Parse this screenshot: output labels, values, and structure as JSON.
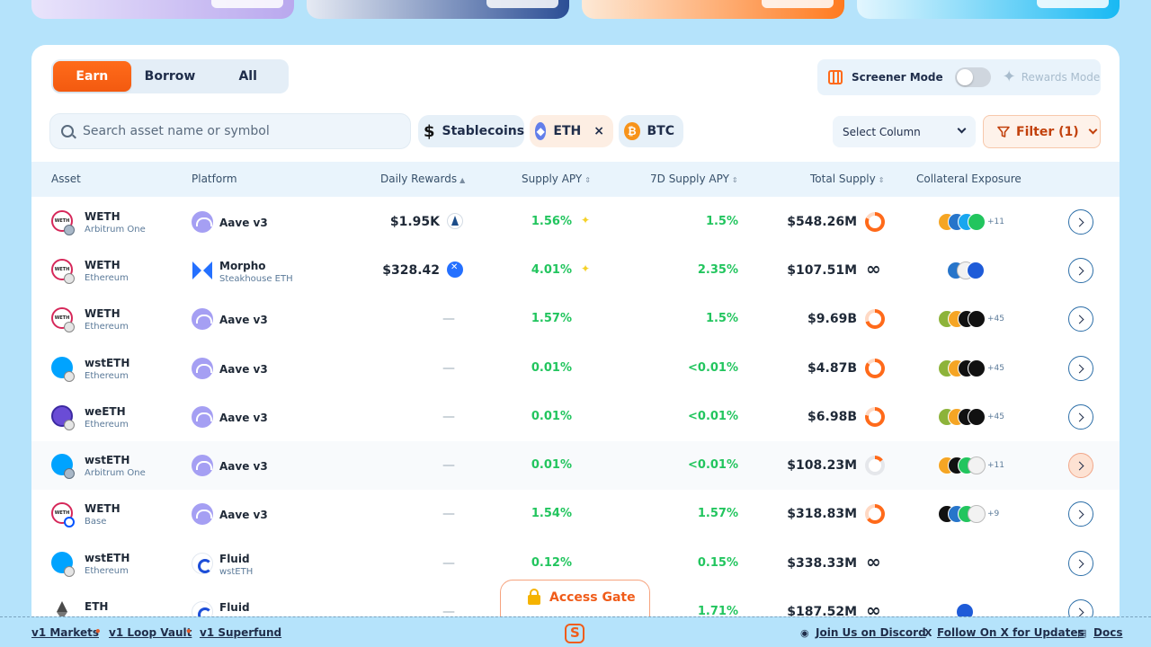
{
  "tabs": [
    {
      "label": "Earn"
    },
    {
      "label": "Borrow"
    },
    {
      "label": "All"
    }
  ],
  "mode": {
    "screener_label": "Screener Mode",
    "rewards_label": "Rewards Mode"
  },
  "search": {
    "placeholder": "Search asset name or symbol"
  },
  "chips": {
    "stable": "Stablecoins",
    "eth": "ETH",
    "btc": "BTC"
  },
  "controls": {
    "select_column": "Select Column",
    "filter": "Filter (1)"
  },
  "columns": {
    "asset": "Asset",
    "platform": "Platform",
    "daily_rewards": "Daily Rewards",
    "supply_apy": "Supply APY",
    "supply_apy_7d": "7D Supply APY",
    "total_supply": "Total Supply",
    "collateral": "Collateral Exposure"
  },
  "rows": [
    {
      "asset": "WETH",
      "chain": "Arbitrum One",
      "platform": "Aave v3",
      "platform_sub": "",
      "rewards": "$1.95K",
      "apy": "1.56%",
      "apy7": "1.5%",
      "supply": "$548.26M",
      "more": "+11"
    },
    {
      "asset": "WETH",
      "chain": "Ethereum",
      "platform": "Morpho",
      "platform_sub": "Steakhouse ETH",
      "rewards": "$328.42",
      "apy": "4.01%",
      "apy7": "2.35%",
      "supply": "$107.51M",
      "more": ""
    },
    {
      "asset": "WETH",
      "chain": "Ethereum",
      "platform": "Aave v3",
      "platform_sub": "",
      "rewards": "—",
      "apy": "1.57%",
      "apy7": "1.5%",
      "supply": "$9.69B",
      "more": "+45"
    },
    {
      "asset": "wstETH",
      "chain": "Ethereum",
      "platform": "Aave v3",
      "platform_sub": "",
      "rewards": "—",
      "apy": "0.01%",
      "apy7": "<0.01%",
      "supply": "$4.87B",
      "more": "+45"
    },
    {
      "asset": "weETH",
      "chain": "Ethereum",
      "platform": "Aave v3",
      "platform_sub": "",
      "rewards": "—",
      "apy": "0.01%",
      "apy7": "<0.01%",
      "supply": "$6.98B",
      "more": "+45"
    },
    {
      "asset": "wstETH",
      "chain": "Arbitrum One",
      "platform": "Aave v3",
      "platform_sub": "",
      "rewards": "—",
      "apy": "0.01%",
      "apy7": "<0.01%",
      "supply": "$108.23M",
      "more": "+11"
    },
    {
      "asset": "WETH",
      "chain": "Base",
      "platform": "Aave v3",
      "platform_sub": "",
      "rewards": "—",
      "apy": "1.54%",
      "apy7": "1.57%",
      "supply": "$318.83M",
      "more": "+9"
    },
    {
      "asset": "wstETH",
      "chain": "Ethereum",
      "platform": "Fluid",
      "platform_sub": "wstETH",
      "rewards": "—",
      "apy": "0.12%",
      "apy7": "0.15%",
      "supply": "$338.33M",
      "more": ""
    },
    {
      "asset": "ETH",
      "chain": "",
      "platform": "Fluid",
      "platform_sub": "",
      "rewards": "—",
      "apy": "",
      "apy7": "1.71%",
      "supply": "$187.52M",
      "more": ""
    }
  ],
  "gate": {
    "label": "Access Gate"
  },
  "footer": {
    "markets": "v1 Markets",
    "loop": "v1 Loop Vault",
    "superfund": "v1 Superfund",
    "discord": "Join Us on Discord",
    "x": "Follow On X for Updates",
    "docs": "Docs"
  },
  "colors": {
    "accent": "#ff6a1a",
    "positive": "#22c55e",
    "background": "#b5e3fb"
  }
}
